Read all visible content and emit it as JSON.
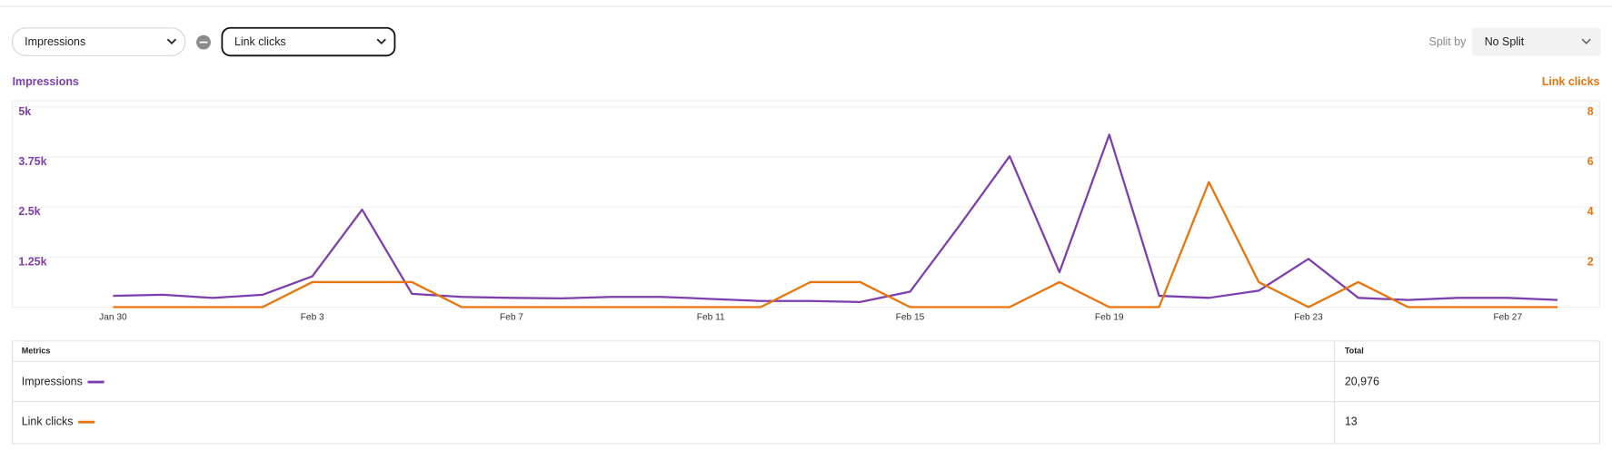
{
  "controls": {
    "metric_1": "Impressions",
    "metric_2": "Link clicks",
    "split_label": "Split by",
    "split_value": "No Split"
  },
  "chart_data": {
    "type": "line",
    "y_label": "Impressions",
    "y2_label": "Link clicks",
    "categories": [
      "Jan 30",
      null,
      null,
      null,
      "Feb 3",
      null,
      null,
      null,
      "Feb 7",
      null,
      null,
      null,
      "Feb 11",
      null,
      null,
      null,
      "Feb 15",
      null,
      null,
      null,
      "Feb 19",
      null,
      null,
      null,
      "Feb 23",
      null,
      null,
      null,
      "Feb 27",
      null
    ],
    "series": [
      {
        "name": "Impressions",
        "color": "#7d3fae",
        "values": [
          282,
          308,
          231,
          308,
          769,
          2436,
          333,
          256,
          231,
          218,
          256,
          256,
          205,
          154,
          154,
          128,
          385,
          2050,
          3769,
          872,
          4308,
          282,
          231,
          410,
          1205,
          231,
          179,
          231,
          231,
          179
        ]
      },
      {
        "name": "Link clicks",
        "color": "#e8740c",
        "axis": "y2",
        "values": [
          0,
          0,
          0,
          0,
          1,
          1,
          1,
          0,
          0,
          0,
          0,
          0,
          0,
          0,
          1,
          1,
          0,
          0,
          0,
          1,
          0,
          0,
          5,
          1,
          0,
          1,
          0,
          0,
          0,
          0
        ]
      }
    ],
    "ylim": [
      0,
      5000
    ],
    "yticks": [
      {
        "value": 1250,
        "label": "1.25k"
      },
      {
        "value": 2500,
        "label": "2.5k"
      },
      {
        "value": 3750,
        "label": "3.75k"
      },
      {
        "value": 5000,
        "label": "5k"
      }
    ],
    "y2lim": [
      0,
      8
    ],
    "y2ticks": [
      2,
      4,
      6,
      8
    ],
    "grid": true
  },
  "table": {
    "header": [
      "Metrics",
      "Total"
    ],
    "rows": [
      [
        "Impressions",
        "20,976"
      ],
      [
        "Link clicks",
        "13"
      ]
    ]
  }
}
